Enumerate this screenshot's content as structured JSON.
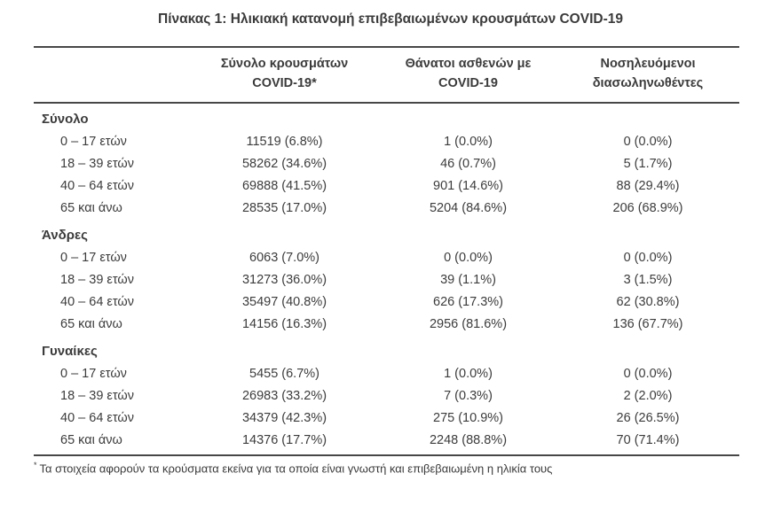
{
  "chart_data": {
    "type": "table",
    "title": "Πίνακας 1: Ηλικιακή κατανομή επιβεβαιωμένων κρουσμάτων COVID-19",
    "columns": [
      "",
      "Σύνολο κρουσμάτων COVID-19*",
      "Θάνατοι ασθενών με COVID-19",
      "Νοσηλευόμενοι διασωληνωθέντες"
    ],
    "col_headers": [
      [
        "Σύνολο κρουσμάτων",
        "COVID-19*"
      ],
      [
        "Θάνατοι ασθενών με",
        "COVID-19"
      ],
      [
        "Νοσηλευόμενοι",
        "διασωληνωθέντες"
      ]
    ],
    "sections": [
      {
        "name": "Σύνολο",
        "rows": [
          {
            "label": "0 – 17 ετών",
            "cases": "11519 (6.8%)",
            "deaths": "1 (0.0%)",
            "intubated": "0 (0.0%)"
          },
          {
            "label": "18 – 39 ετών",
            "cases": "58262 (34.6%)",
            "deaths": "46 (0.7%)",
            "intubated": "5 (1.7%)"
          },
          {
            "label": "40 – 64 ετών",
            "cases": "69888 (41.5%)",
            "deaths": "901 (14.6%)",
            "intubated": "88 (29.4%)"
          },
          {
            "label": "65 και άνω",
            "cases": "28535 (17.0%)",
            "deaths": "5204 (84.6%)",
            "intubated": "206 (68.9%)"
          }
        ]
      },
      {
        "name": "Άνδρες",
        "rows": [
          {
            "label": "0 – 17 ετών",
            "cases": "6063 (7.0%)",
            "deaths": "0 (0.0%)",
            "intubated": "0 (0.0%)"
          },
          {
            "label": "18 – 39 ετών",
            "cases": "31273 (36.0%)",
            "deaths": "39 (1.1%)",
            "intubated": "3 (1.5%)"
          },
          {
            "label": "40 – 64 ετών",
            "cases": "35497 (40.8%)",
            "deaths": "626 (17.3%)",
            "intubated": "62 (30.8%)"
          },
          {
            "label": "65 και άνω",
            "cases": "14156 (16.3%)",
            "deaths": "2956 (81.6%)",
            "intubated": "136 (67.7%)"
          }
        ]
      },
      {
        "name": "Γυναίκες",
        "rows": [
          {
            "label": "0 – 17 ετών",
            "cases": "5455 (6.7%)",
            "deaths": "1 (0.0%)",
            "intubated": "0 (0.0%)"
          },
          {
            "label": "18 – 39 ετών",
            "cases": "26983 (33.2%)",
            "deaths": "7 (0.3%)",
            "intubated": "2 (2.0%)"
          },
          {
            "label": "40 – 64 ετών",
            "cases": "34379 (42.3%)",
            "deaths": "275 (10.9%)",
            "intubated": "26 (26.5%)"
          },
          {
            "label": "65 και άνω",
            "cases": "14376 (17.7%)",
            "deaths": "2248 (88.8%)",
            "intubated": "70 (71.4%)"
          }
        ]
      }
    ],
    "footnote_marker": "*",
    "footnote": "Τα στοιχεία αφορούν τα κρούσματα εκείνα για τα οποία είναι γνωστή και επιβεβαιωμένη η ηλικία τους",
    "colors": {
      "text": "#3b3b3b",
      "rule": "#474747",
      "background": "#ffffff"
    }
  }
}
